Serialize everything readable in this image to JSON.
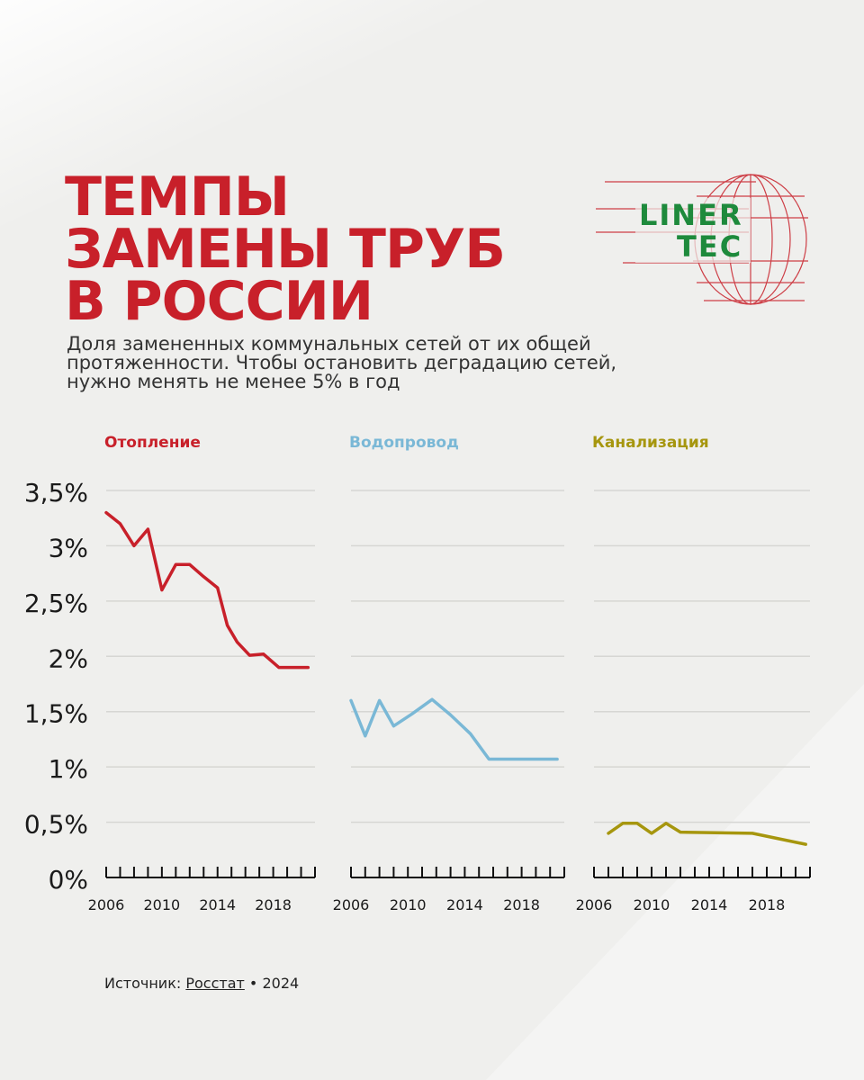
{
  "title": {
    "lines": [
      "ТЕМПЫ",
      "ЗАМЕНЫ ТРУБ",
      "В РОССИИ"
    ]
  },
  "subtitle": {
    "lines": [
      "Доля замененных коммунальных сетей от их общей",
      "протяженности. Чтобы остановить деградацию сетей,",
      "нужно менять не менее 5% в год"
    ]
  },
  "logo": {
    "line1": "LINER",
    "line2": "TEC",
    "green": "#1e8a3c",
    "red": "#c8202a"
  },
  "source": {
    "label": "Источник:",
    "link_text": "Росстат",
    "separator": "•",
    "year": "2024"
  },
  "chart_data": {
    "type": "line",
    "ylim": [
      0,
      3.5
    ],
    "y_ticks": [
      {
        "value": 0,
        "label": "0%"
      },
      {
        "value": 0.5,
        "label": "0,5%"
      },
      {
        "value": 1,
        "label": "1%"
      },
      {
        "value": 1.5,
        "label": "1,5%"
      },
      {
        "value": 2,
        "label": "2%"
      },
      {
        "value": 2.5,
        "label": "2,5%"
      },
      {
        "value": 3,
        "label": "3%"
      },
      {
        "value": 3.5,
        "label": "3,5%"
      }
    ],
    "x_range": [
      2006,
      2021
    ],
    "x_tick_labels": [
      "2006",
      "2010",
      "2014",
      "2018"
    ],
    "grid": true,
    "series": [
      {
        "name": "Отопление",
        "color": "#c8202a",
        "points": [
          [
            2006,
            3.3
          ],
          [
            2007,
            3.2
          ],
          [
            2008,
            3.0
          ],
          [
            2009,
            3.15
          ],
          [
            2010,
            2.6
          ],
          [
            2011,
            2.83
          ],
          [
            2012,
            2.83
          ],
          [
            2013,
            2.72
          ],
          [
            2014,
            2.62
          ],
          [
            2014.7,
            2.28
          ],
          [
            2015.4,
            2.13
          ],
          [
            2016.3,
            2.01
          ],
          [
            2017.3,
            2.02
          ],
          [
            2018.4,
            1.9
          ],
          [
            2019.5,
            1.9
          ],
          [
            2020.5,
            1.9
          ]
        ]
      },
      {
        "name": "Водопровод",
        "color": "#7ab8d6",
        "points": [
          [
            2006,
            1.6
          ],
          [
            2007,
            1.28
          ],
          [
            2008,
            1.6
          ],
          [
            2009,
            1.37
          ],
          [
            2010.3,
            1.48
          ],
          [
            2011.7,
            1.61
          ],
          [
            2013,
            1.47
          ],
          [
            2014.4,
            1.3
          ],
          [
            2015.7,
            1.07
          ],
          [
            2018,
            1.07
          ],
          [
            2020.5,
            1.07
          ]
        ]
      },
      {
        "name": "Канализация",
        "color": "#a6960e",
        "points": [
          [
            2007,
            0.4
          ],
          [
            2008,
            0.49
          ],
          [
            2009,
            0.49
          ],
          [
            2010,
            0.4
          ],
          [
            2011,
            0.49
          ],
          [
            2012,
            0.41
          ],
          [
            2017,
            0.4
          ],
          [
            2020.7,
            0.3
          ]
        ]
      }
    ]
  }
}
